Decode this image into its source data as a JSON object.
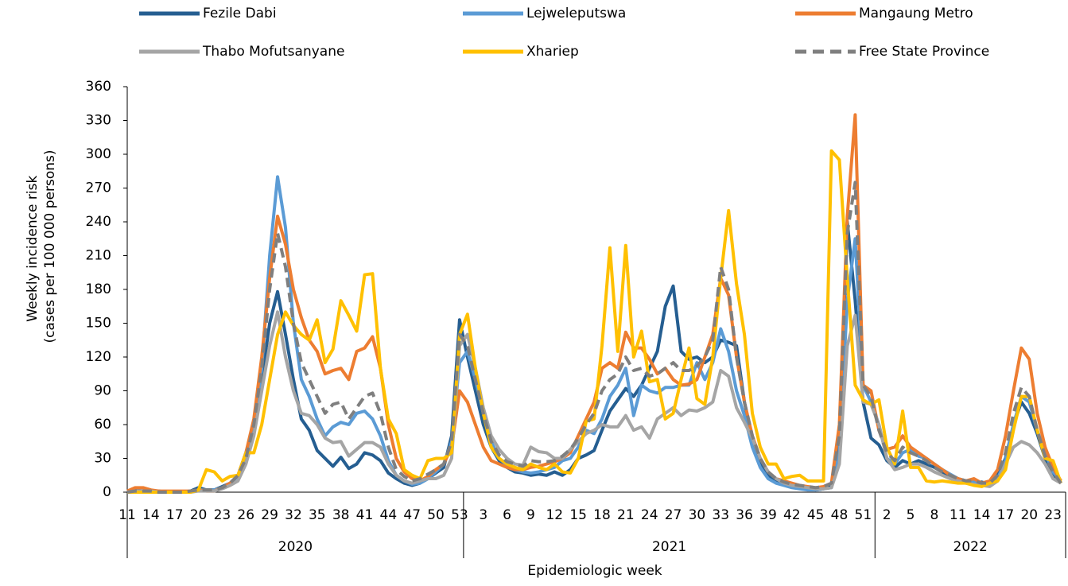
{
  "chart_data": {
    "type": "line",
    "y_label": [
      "Weekly incidence risk",
      "(cases per 100 000 persons)"
    ],
    "x_label": "Epidemiologic week",
    "category_groups": [
      {
        "name": "2020",
        "categories": [
          "11",
          null,
          null,
          "14",
          null,
          null,
          "17",
          null,
          null,
          "20",
          null,
          null,
          "23",
          null,
          null,
          "26",
          null,
          null,
          "29",
          null,
          null,
          "32",
          null,
          null,
          "35",
          null,
          null,
          "38",
          null,
          null,
          "41",
          null,
          null,
          "44",
          null,
          null,
          "47",
          null,
          null,
          "50",
          null,
          null,
          "53"
        ]
      },
      {
        "name": "2021",
        "categories": [
          null,
          null,
          "3",
          null,
          null,
          "6",
          null,
          null,
          "9",
          null,
          null,
          "12",
          null,
          null,
          "15",
          null,
          null,
          "18",
          null,
          null,
          "21",
          null,
          null,
          "24",
          null,
          null,
          "27",
          null,
          null,
          "30",
          null,
          null,
          "33",
          null,
          null,
          "36",
          null,
          null,
          "39",
          null,
          null,
          "42",
          null,
          null,
          "45",
          null,
          null,
          "48",
          null,
          null,
          "51",
          null
        ]
      },
      {
        "name": "2022",
        "categories": [
          null,
          "2",
          null,
          null,
          "5",
          null,
          null,
          "8",
          null,
          null,
          "11",
          null,
          null,
          "14",
          null,
          null,
          "17",
          null,
          null,
          "20",
          null,
          null,
          "23",
          null
        ]
      }
    ],
    "ylim": [
      0,
      360
    ],
    "yticks": [
      0,
      30,
      60,
      90,
      120,
      150,
      180,
      210,
      240,
      270,
      300,
      330,
      360
    ],
    "legend": "top",
    "series": [
      {
        "name": "Fezile Dabi",
        "color": "#255e91",
        "dashed": false,
        "values": [
          0,
          2,
          1,
          1,
          1,
          0,
          0,
          0,
          1,
          4,
          2,
          2,
          5,
          8,
          15,
          35,
          60,
          100,
          150,
          178,
          140,
          100,
          65,
          55,
          37,
          30,
          23,
          31,
          21,
          25,
          35,
          33,
          28,
          17,
          12,
          8,
          6,
          8,
          12,
          17,
          22,
          50,
          153,
          120,
          90,
          60,
          40,
          28,
          22,
          18,
          17,
          15,
          16,
          15,
          18,
          15,
          20,
          30,
          33,
          37,
          55,
          72,
          82,
          92,
          85,
          95,
          110,
          125,
          165,
          183,
          125,
          118,
          120,
          115,
          120,
          135,
          133,
          130,
          80,
          45,
          25,
          15,
          10,
          7,
          5,
          4,
          3,
          2,
          3,
          5,
          40,
          240,
          170,
          80,
          48,
          42,
          28,
          22,
          28,
          25,
          28,
          25,
          22,
          18,
          14,
          12,
          10,
          8,
          9,
          7,
          15,
          30,
          60,
          80,
          70,
          52,
          30,
          15,
          8
        ]
      },
      {
        "name": "Lejweleputswa",
        "color": "#5b9bd5",
        "dashed": false,
        "values": [
          0,
          1,
          1,
          1,
          0,
          0,
          0,
          0,
          1,
          2,
          2,
          2,
          4,
          8,
          14,
          30,
          55,
          110,
          210,
          280,
          235,
          150,
          100,
          85,
          65,
          50,
          58,
          62,
          60,
          70,
          72,
          65,
          50,
          28,
          15,
          10,
          7,
          8,
          12,
          18,
          25,
          45,
          115,
          125,
          100,
          70,
          45,
          30,
          24,
          20,
          18,
          17,
          18,
          20,
          22,
          28,
          30,
          40,
          55,
          52,
          65,
          85,
          95,
          110,
          68,
          95,
          90,
          88,
          93,
          93,
          95,
          95,
          115,
          100,
          115,
          145,
          125,
          90,
          68,
          40,
          22,
          12,
          8,
          6,
          4,
          3,
          2,
          2,
          3,
          4,
          35,
          170,
          225,
          95,
          80,
          60,
          30,
          25,
          35,
          38,
          32,
          30,
          25,
          20,
          16,
          12,
          10,
          9,
          8,
          6,
          12,
          28,
          60,
          85,
          80,
          55,
          35,
          18,
          10
        ]
      },
      {
        "name": "Mangaung Metro",
        "color": "#ed7d31",
        "dashed": false,
        "values": [
          1,
          4,
          4,
          2,
          1,
          1,
          1,
          1,
          1,
          2,
          1,
          1,
          4,
          8,
          15,
          35,
          65,
          120,
          190,
          245,
          220,
          180,
          155,
          135,
          125,
          105,
          108,
          110,
          100,
          125,
          128,
          138,
          110,
          60,
          30,
          18,
          12,
          10,
          14,
          20,
          25,
          40,
          90,
          80,
          60,
          40,
          28,
          25,
          22,
          20,
          20,
          22,
          23,
          25,
          27,
          30,
          35,
          50,
          65,
          80,
          110,
          115,
          110,
          142,
          128,
          128,
          118,
          105,
          110,
          100,
          95,
          96,
          100,
          120,
          140,
          190,
          175,
          120,
          80,
          50,
          30,
          18,
          12,
          10,
          8,
          6,
          5,
          4,
          5,
          8,
          60,
          245,
          335,
          95,
          90,
          55,
          38,
          40,
          50,
          40,
          35,
          30,
          25,
          20,
          15,
          12,
          10,
          12,
          8,
          10,
          20,
          50,
          90,
          128,
          118,
          70,
          40,
          22,
          10
        ]
      },
      {
        "name": "Thabo Mofutsanyane",
        "color": "#a5a5a5",
        "dashed": false,
        "values": [
          0,
          1,
          1,
          1,
          0,
          0,
          0,
          0,
          0,
          1,
          1,
          1,
          3,
          6,
          10,
          25,
          50,
          90,
          130,
          160,
          120,
          90,
          70,
          68,
          60,
          48,
          44,
          45,
          32,
          38,
          44,
          44,
          40,
          25,
          15,
          10,
          8,
          10,
          12,
          12,
          15,
          30,
          130,
          140,
          110,
          75,
          50,
          38,
          30,
          25,
          24,
          40,
          36,
          35,
          30,
          30,
          38,
          45,
          52,
          55,
          60,
          58,
          58,
          68,
          55,
          58,
          48,
          65,
          70,
          75,
          68,
          73,
          72,
          75,
          80,
          108,
          103,
          75,
          62,
          48,
          30,
          18,
          12,
          8,
          6,
          5,
          4,
          3,
          3,
          4,
          25,
          130,
          157,
          80,
          78,
          60,
          30,
          20,
          22,
          25,
          25,
          22,
          18,
          15,
          12,
          10,
          8,
          7,
          6,
          5,
          10,
          25,
          40,
          45,
          42,
          35,
          25,
          12,
          8
        ]
      },
      {
        "name": "Xhariep",
        "color": "#ffc000",
        "dashed": false,
        "values": [
          0,
          0,
          0,
          0,
          0,
          0,
          0,
          0,
          0,
          2,
          20,
          18,
          10,
          14,
          15,
          35,
          35,
          60,
          100,
          140,
          160,
          148,
          140,
          135,
          153,
          115,
          127,
          170,
          157,
          143,
          193,
          194,
          110,
          65,
          52,
          20,
          15,
          12,
          28,
          30,
          30,
          35,
          140,
          158,
          110,
          70,
          40,
          30,
          25,
          22,
          20,
          25,
          22,
          20,
          25,
          18,
          17,
          30,
          63,
          65,
          130,
          217,
          125,
          219,
          120,
          143,
          98,
          100,
          65,
          70,
          100,
          128,
          83,
          78,
          120,
          190,
          250,
          185,
          140,
          70,
          40,
          25,
          25,
          12,
          14,
          15,
          10,
          10,
          10,
          303,
          295,
          190,
          95,
          82,
          78,
          82,
          40,
          25,
          72,
          22,
          22,
          10,
          9,
          10,
          9,
          8,
          8,
          6,
          5,
          8,
          10,
          20,
          55,
          85,
          85,
          55,
          30,
          28,
          8
        ]
      },
      {
        "name": "Free State Province",
        "color": "#7f7f7f",
        "dashed": true,
        "values": [
          0,
          1,
          1,
          1,
          0,
          0,
          0,
          0,
          1,
          2,
          2,
          2,
          4,
          8,
          15,
          30,
          60,
          110,
          180,
          230,
          200,
          150,
          115,
          100,
          85,
          70,
          78,
          80,
          65,
          75,
          85,
          88,
          70,
          40,
          20,
          14,
          10,
          12,
          16,
          20,
          25,
          45,
          140,
          130,
          100,
          70,
          45,
          33,
          27,
          25,
          23,
          28,
          27,
          27,
          28,
          32,
          38,
          48,
          60,
          70,
          90,
          100,
          105,
          120,
          108,
          110,
          103,
          105,
          110,
          115,
          108,
          108,
          112,
          120,
          135,
          200,
          180,
          120,
          80,
          50,
          30,
          18,
          12,
          9,
          7,
          6,
          5,
          4,
          5,
          8,
          50,
          230,
          275,
          95,
          85,
          55,
          35,
          28,
          40,
          35,
          32,
          28,
          22,
          18,
          15,
          12,
          10,
          10,
          8,
          8,
          15,
          35,
          70,
          93,
          85,
          55,
          32,
          18,
          8
        ]
      }
    ]
  }
}
